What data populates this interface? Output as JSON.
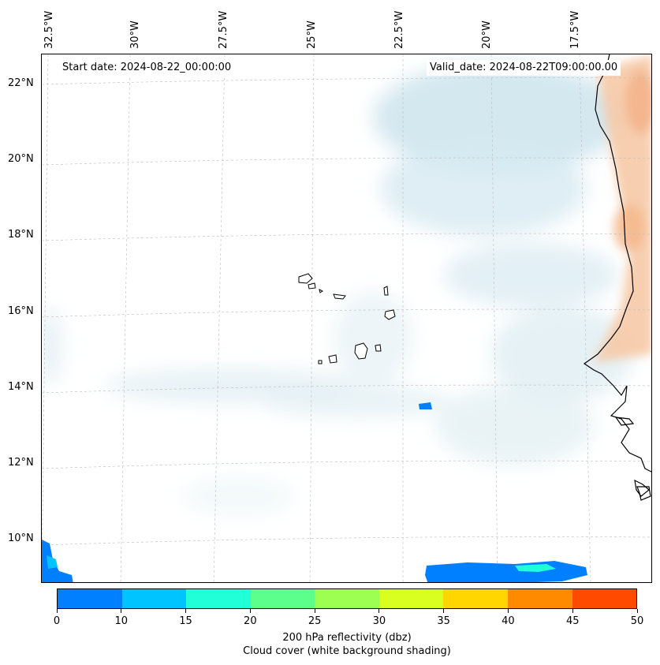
{
  "map": {
    "start_date": "Start date: 2024-08-22_00:00:00",
    "valid_date": "Valid_date: 2024-08-22T09:00:00.00",
    "lon_labels": [
      "32.5°W",
      "30°W",
      "27.5°W",
      "25°W",
      "22.5°W",
      "20°W",
      "17.5°W"
    ],
    "lat_labels": [
      "22°N",
      "20°N",
      "18°N",
      "16°N",
      "14°N",
      "12°N",
      "10°N"
    ],
    "gridlines": "on",
    "coastline_color": "#000000"
  },
  "colorbar": {
    "ticks": [
      "0",
      "10",
      "15",
      "20",
      "25",
      "30",
      "35",
      "40",
      "45",
      "50"
    ],
    "colors": [
      "#0080ff",
      "#00c4ff",
      "#20ffd8",
      "#5cff8c",
      "#9cff52",
      "#d8ff20",
      "#ffd600",
      "#ff8a00",
      "#ff4a00"
    ],
    "label": "200 hPa reflectivity (dbz)",
    "sublabel": "Cloud cover (white background shading)"
  }
}
